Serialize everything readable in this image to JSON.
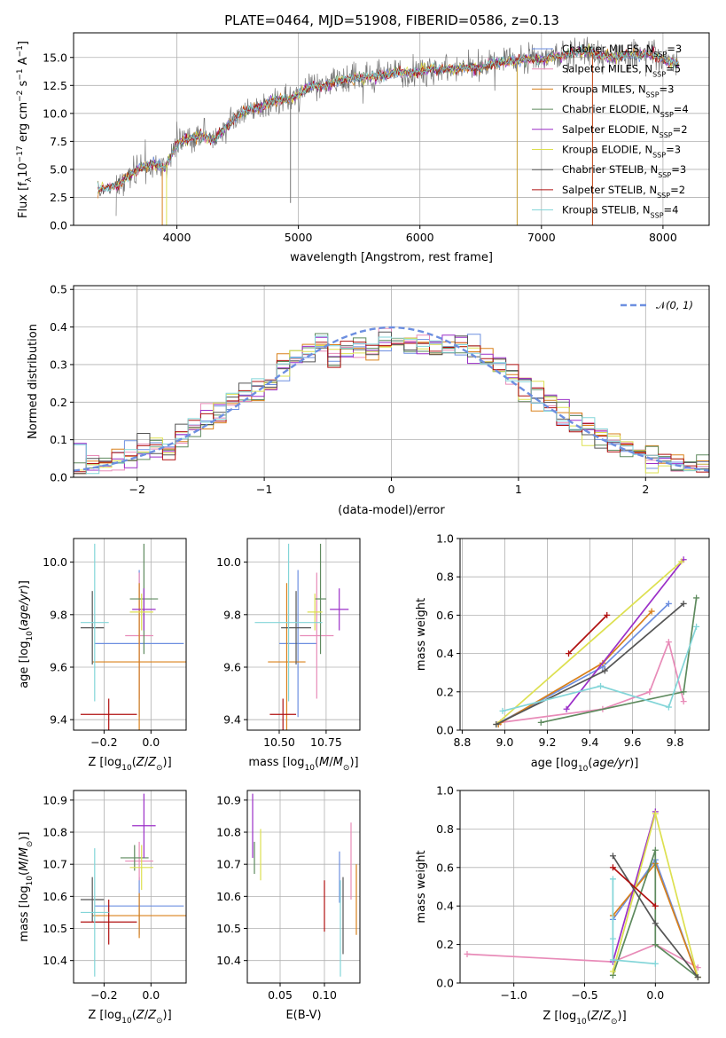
{
  "figure": {
    "title": "PLATE=0464, MJD=51908, FIBERID=0586, z=0.13"
  },
  "colors": {
    "Chabrier MILES": "#6d8fe0",
    "Salpeter MILES": "#e88bb8",
    "Kroupa MILES": "#d9801a",
    "Chabrier ELODIE": "#5e8a5e",
    "Salpeter ELODIE": "#9b2fc8",
    "Kroupa ELODIE": "#dde050",
    "Chabrier STELIB": "#555555",
    "Salpeter STELIB": "#b01010",
    "Kroupa STELIB": "#82d5d8"
  },
  "chart_data": [
    {
      "id": "spectrum",
      "type": "line",
      "title": "PLATE=0464, MJD=51908, FIBERID=0586, z=0.13",
      "xlabel": "wavelength [Angstrom, rest frame]",
      "ylabel": "Flux [f$_\\lambda$10$^{-17}$ erg cm$^{-2}$ s$^{-1}$ A$^{-1}$]",
      "xlim": [
        3150,
        8380
      ],
      "ylim": [
        0,
        17.2
      ],
      "xticks": [
        "4000",
        "5000",
        "6000",
        "7000",
        "8000"
      ],
      "yticks": [
        "0.0",
        "2.5",
        "5.0",
        "7.5",
        "10.0",
        "12.5",
        "15.0"
      ],
      "legend_position": "top-right",
      "legend": [
        {
          "label": "Chabrier MILES, N",
          "sub": "SSP",
          "suffix": "=3"
        },
        {
          "label": "Salpeter MILES, N",
          "sub": "SSP",
          "suffix": "=5"
        },
        {
          "label": "Kroupa MILES, N",
          "sub": "SSP",
          "suffix": "=3"
        },
        {
          "label": "Chabrier ELODIE, N",
          "sub": "SSP",
          "suffix": "=4"
        },
        {
          "label": "Salpeter ELODIE, N",
          "sub": "SSP",
          "suffix": "=2"
        },
        {
          "label": "Kroupa ELODIE, N",
          "sub": "SSP",
          "suffix": "=3"
        },
        {
          "label": "Chabrier STELIB, N",
          "sub": "SSP",
          "suffix": "=3"
        },
        {
          "label": "Salpeter STELIB, N",
          "sub": "SSP",
          "suffix": "=2"
        },
        {
          "label": "Kroupa STELIB, N",
          "sub": "SSP",
          "suffix": "=4"
        }
      ],
      "continuum": [
        [
          3350,
          3.2
        ],
        [
          3500,
          3.5
        ],
        [
          3600,
          4.4
        ],
        [
          3700,
          5.1
        ],
        [
          3800,
          5.5
        ],
        [
          3900,
          5.1
        ],
        [
          4000,
          7.2
        ],
        [
          4100,
          7.8
        ],
        [
          4200,
          8.0
        ],
        [
          4300,
          7.6
        ],
        [
          4400,
          8.7
        ],
        [
          4500,
          9.8
        ],
        [
          4600,
          10.4
        ],
        [
          4700,
          10.6
        ],
        [
          4800,
          11.2
        ],
        [
          4900,
          11.2
        ],
        [
          5000,
          11.7
        ],
        [
          5100,
          12.5
        ],
        [
          5200,
          12.4
        ],
        [
          5300,
          12.8
        ],
        [
          5400,
          13.0
        ],
        [
          5500,
          13.2
        ],
        [
          5600,
          13.3
        ],
        [
          5700,
          13.4
        ],
        [
          5800,
          13.7
        ],
        [
          5900,
          13.6
        ],
        [
          6000,
          13.7
        ],
        [
          6100,
          14.1
        ],
        [
          6200,
          13.9
        ],
        [
          6300,
          14.0
        ],
        [
          6400,
          14.1
        ],
        [
          6500,
          14.0
        ],
        [
          6600,
          14.5
        ],
        [
          6700,
          14.6
        ],
        [
          6800,
          14.7
        ],
        [
          6900,
          14.9
        ],
        [
          7000,
          14.8
        ],
        [
          7100,
          15.1
        ],
        [
          7200,
          15.2
        ],
        [
          7300,
          15.6
        ],
        [
          7400,
          15.5
        ],
        [
          7500,
          15.2
        ],
        [
          7600,
          15.0
        ],
        [
          7700,
          15.2
        ],
        [
          7800,
          15.2
        ],
        [
          7900,
          15.4
        ],
        [
          8000,
          14.8
        ],
        [
          8100,
          14.4
        ]
      ],
      "spikes": [
        {
          "x": 3880,
          "y": 0
        },
        {
          "x": 3915,
          "y": 0
        },
        {
          "x": 4935,
          "y": 2.0
        },
        {
          "x": 6800,
          "y": 0
        },
        {
          "x": 7420,
          "y": 0
        }
      ]
    },
    {
      "id": "residuals",
      "type": "histogram",
      "xlabel": "(data-model)/error",
      "ylabel": "Normed distribution",
      "xlim": [
        -2.5,
        2.5
      ],
      "ylim": [
        0,
        0.51
      ],
      "xticks": [
        "−2",
        "−1",
        "0",
        "1",
        "2"
      ],
      "yticks": [
        "0.0",
        "0.1",
        "0.2",
        "0.3",
        "0.4",
        "0.5"
      ],
      "legend_position": "top-right",
      "legend": [
        {
          "label": "N(0,1)"
        }
      ],
      "bin_width": 0.1
    },
    {
      "id": "age_vs_Z",
      "type": "errorbar",
      "xlabel": "Z [log10(Z/Z⊙)]",
      "ylabel": "age [log10(age/yr)]",
      "xlim": [
        -0.33,
        0.15
      ],
      "ylim": [
        9.36,
        10.09
      ],
      "xticks": [
        "−0.2",
        "0.0"
      ],
      "yticks": [
        "9.4",
        "9.6",
        "9.8",
        "10.0"
      ],
      "points": [
        {
          "model": "Chabrier MILES",
          "x": -0.05,
          "xerr": 0.19,
          "y": 9.69,
          "yerr": 0.28
        },
        {
          "model": "Salpeter MILES",
          "x": -0.05,
          "xerr": 0.06,
          "y": 9.72,
          "yerr": 0.24
        },
        {
          "model": "Kroupa MILES",
          "x": -0.05,
          "xerr": 0.2,
          "y": 9.62,
          "yerr": 0.3
        },
        {
          "model": "Chabrier ELODIE",
          "x": -0.03,
          "xerr": 0.06,
          "y": 9.86,
          "yerr": 0.21
        },
        {
          "model": "Salpeter ELODIE",
          "x": -0.03,
          "xerr": 0.05,
          "y": 9.82,
          "yerr": 0.08
        },
        {
          "model": "Kroupa ELODIE",
          "x": -0.04,
          "xerr": 0.05,
          "y": 9.81,
          "yerr": 0.07
        },
        {
          "model": "Chabrier STELIB",
          "x": -0.25,
          "xerr": 0.05,
          "y": 9.75,
          "yerr": 0.14
        },
        {
          "model": "Salpeter STELIB",
          "x": -0.18,
          "xerr": 0.12,
          "y": 9.42,
          "yerr": 0.06
        },
        {
          "model": "Kroupa STELIB",
          "x": -0.24,
          "xerr": 0.06,
          "y": 9.77,
          "yerr": 0.3
        }
      ]
    },
    {
      "id": "age_vs_mass",
      "type": "errorbar",
      "xlabel": "mass [log10(M/M⊙)]",
      "ylabel": "",
      "xlim": [
        10.33,
        10.93
      ],
      "ylim": [
        9.36,
        10.09
      ],
      "xticks": [
        "10.50",
        "10.75"
      ],
      "yticks": [
        "9.4",
        "9.6",
        "9.8",
        "10.0"
      ],
      "points": [
        {
          "model": "Chabrier MILES",
          "x": 10.6,
          "xerr": 0.1,
          "y": 9.69,
          "yerr": 0.28
        },
        {
          "model": "Salpeter MILES",
          "x": 10.7,
          "xerr": 0.09,
          "y": 9.72,
          "yerr": 0.24
        },
        {
          "model": "Kroupa MILES",
          "x": 10.54,
          "xerr": 0.1,
          "y": 9.62,
          "yerr": 0.3
        },
        {
          "model": "Chabrier ELODIE",
          "x": 10.72,
          "xerr": 0.03,
          "y": 9.86,
          "yerr": 0.21
        },
        {
          "model": "Salpeter ELODIE",
          "x": 10.82,
          "xerr": 0.05,
          "y": 9.82,
          "yerr": 0.08
        },
        {
          "model": "Kroupa ELODIE",
          "x": 10.69,
          "xerr": 0.04,
          "y": 9.81,
          "yerr": 0.07
        },
        {
          "model": "Chabrier STELIB",
          "x": 10.59,
          "xerr": 0.08,
          "y": 9.75,
          "yerr": 0.14
        },
        {
          "model": "Salpeter STELIB",
          "x": 10.52,
          "xerr": 0.07,
          "y": 9.42,
          "yerr": 0.06
        },
        {
          "model": "Kroupa STELIB",
          "x": 10.55,
          "xerr": 0.18,
          "y": 9.77,
          "yerr": 0.3
        }
      ]
    },
    {
      "id": "mass_weight_vs_age",
      "type": "line",
      "xlabel": "age [log10(age/yr)]",
      "ylabel": "mass weight",
      "xlim": [
        8.79,
        9.96
      ],
      "ylim": [
        0,
        1
      ],
      "xticks": [
        "8.8",
        "9.0",
        "9.2",
        "9.4",
        "9.6",
        "9.8"
      ],
      "yticks": [
        "0.0",
        "0.2",
        "0.4",
        "0.6",
        "0.8",
        "1.0"
      ],
      "series": [
        {
          "model": "Chabrier MILES",
          "points": [
            [
              8.96,
              0.03
            ],
            [
              9.46,
              0.33
            ],
            [
              9.77,
              0.66
            ]
          ]
        },
        {
          "model": "Salpeter MILES",
          "points": [
            [
              8.98,
              0.04
            ],
            [
              9.46,
              0.11
            ],
            [
              9.68,
              0.2
            ],
            [
              9.77,
              0.46
            ],
            [
              9.84,
              0.15
            ]
          ]
        },
        {
          "model": "Kroupa MILES",
          "points": [
            [
              8.97,
              0.03
            ],
            [
              9.46,
              0.35
            ],
            [
              9.69,
              0.62
            ]
          ]
        },
        {
          "model": "Chabrier ELODIE",
          "points": [
            [
              9.17,
              0.04
            ],
            [
              9.84,
              0.2
            ],
            [
              9.9,
              0.69
            ]
          ]
        },
        {
          "model": "Salpeter ELODIE",
          "points": [
            [
              9.29,
              0.11
            ],
            [
              9.84,
              0.89
            ]
          ]
        },
        {
          "model": "Kroupa ELODIE",
          "points": [
            [
              8.96,
              0.03
            ],
            [
              9.83,
              0.88
            ]
          ]
        },
        {
          "model": "Chabrier STELIB",
          "points": [
            [
              8.96,
              0.03
            ],
            [
              9.47,
              0.31
            ],
            [
              9.84,
              0.66
            ]
          ]
        },
        {
          "model": "Salpeter STELIB",
          "points": [
            [
              9.3,
              0.4
            ],
            [
              9.48,
              0.6
            ]
          ]
        },
        {
          "model": "Kroupa STELIB",
          "points": [
            [
              8.99,
              0.1
            ],
            [
              9.45,
              0.23
            ],
            [
              9.77,
              0.12
            ],
            [
              9.9,
              0.54
            ]
          ]
        }
      ]
    },
    {
      "id": "mass_vs_Z",
      "type": "errorbar",
      "xlabel": "Z [log10(Z/Z⊙)]",
      "ylabel": "mass [log10(M/M⊙)]",
      "xlim": [
        -0.33,
        0.15
      ],
      "ylim": [
        10.33,
        10.93
      ],
      "xticks": [
        "−0.2",
        "0.0"
      ],
      "yticks": [
        "10.4",
        "10.5",
        "10.6",
        "10.7",
        "10.8",
        "10.9"
      ],
      "points": [
        {
          "model": "Chabrier MILES",
          "x": -0.05,
          "xerr": 0.19,
          "y": 10.57,
          "yerr": 0.09
        },
        {
          "model": "Salpeter MILES",
          "x": -0.05,
          "xerr": 0.06,
          "y": 10.71,
          "yerr": 0.06
        },
        {
          "model": "Kroupa MILES",
          "x": -0.05,
          "xerr": 0.2,
          "y": 10.54,
          "yerr": 0.07
        },
        {
          "model": "Chabrier ELODIE",
          "x": -0.07,
          "xerr": 0.06,
          "y": 10.72,
          "yerr": 0.04
        },
        {
          "model": "Salpeter ELODIE",
          "x": -0.03,
          "xerr": 0.05,
          "y": 10.82,
          "yerr": 0.1
        },
        {
          "model": "Kroupa ELODIE",
          "x": -0.04,
          "xerr": 0.05,
          "y": 10.69,
          "yerr": 0.07
        },
        {
          "model": "Chabrier STELIB",
          "x": -0.25,
          "xerr": 0.05,
          "y": 10.59,
          "yerr": 0.07
        },
        {
          "model": "Salpeter STELIB",
          "x": -0.18,
          "xerr": 0.12,
          "y": 10.52,
          "yerr": 0.07
        },
        {
          "model": "Kroupa STELIB",
          "x": -0.24,
          "xerr": 0.06,
          "y": 10.55,
          "yerr": 0.2
        }
      ]
    },
    {
      "id": "mass_vs_ebv",
      "type": "errorbar",
      "xlabel": "E(B-V)",
      "ylabel": "",
      "xlim": [
        0.013,
        0.14
      ],
      "ylim": [
        10.33,
        10.93
      ],
      "xticks": [
        "0.05",
        "0.10"
      ],
      "yticks": [
        "10.4",
        "10.5",
        "10.6",
        "10.7",
        "10.8",
        "10.9"
      ],
      "points": [
        {
          "model": "Chabrier MILES",
          "x": 0.117,
          "y": 10.66,
          "yerr": 0.08
        },
        {
          "model": "Salpeter MILES",
          "x": 0.13,
          "y": 10.71,
          "yerr": 0.12
        },
        {
          "model": "Kroupa MILES",
          "x": 0.136,
          "y": 10.59,
          "yerr": 0.11
        },
        {
          "model": "Chabrier ELODIE",
          "x": 0.021,
          "y": 10.72,
          "yerr": 0.05
        },
        {
          "model": "Salpeter ELODIE",
          "x": 0.019,
          "y": 10.82,
          "yerr": 0.1
        },
        {
          "model": "Kroupa ELODIE",
          "x": 0.028,
          "y": 10.73,
          "yerr": 0.08
        },
        {
          "model": "Chabrier STELIB",
          "x": 0.121,
          "y": 10.54,
          "yerr": 0.12
        },
        {
          "model": "Salpeter STELIB",
          "x": 0.1,
          "y": 10.57,
          "yerr": 0.08
        },
        {
          "model": "Kroupa STELIB",
          "x": 0.118,
          "y": 10.5,
          "yerr": 0.15
        }
      ]
    },
    {
      "id": "mass_weight_vs_Z",
      "type": "line",
      "xlabel": "Z [log10(Z/Z⊙)]",
      "ylabel": "mass weight",
      "xlim": [
        -1.38,
        0.38
      ],
      "ylim": [
        0,
        1
      ],
      "xticks": [
        "−1.0",
        "−0.5",
        "0.0"
      ],
      "yticks": [
        "0.0",
        "0.2",
        "0.4",
        "0.6",
        "0.8",
        "1.0"
      ],
      "series": [
        {
          "model": "Chabrier MILES",
          "points": [
            [
              -0.3,
              0.33
            ],
            [
              0.0,
              0.64
            ],
            [
              0.3,
              0.03
            ]
          ]
        },
        {
          "model": "Salpeter MILES",
          "points": [
            [
              -1.33,
              0.15
            ],
            [
              -0.3,
              0.11
            ],
            [
              0.0,
              0.2
            ],
            [
              0.3,
              0.08
            ]
          ]
        },
        {
          "model": "Kroupa MILES",
          "points": [
            [
              -0.3,
              0.35
            ],
            [
              0.0,
              0.62
            ],
            [
              0.3,
              0.03
            ]
          ]
        },
        {
          "model": "Chabrier ELODIE",
          "points": [
            [
              -0.3,
              0.04
            ],
            [
              0.0,
              0.69
            ],
            [
              0.0,
              0.2
            ],
            [
              0.3,
              0.03
            ]
          ]
        },
        {
          "model": "Salpeter ELODIE",
          "points": [
            [
              -0.3,
              0.11
            ],
            [
              0.0,
              0.89
            ]
          ]
        },
        {
          "model": "Kroupa ELODIE",
          "points": [
            [
              -0.3,
              0.06
            ],
            [
              0.0,
              0.88
            ],
            [
              0.3,
              0.03
            ]
          ]
        },
        {
          "model": "Chabrier STELIB",
          "points": [
            [
              -0.3,
              0.66
            ],
            [
              0.0,
              0.31
            ],
            [
              0.3,
              0.03
            ]
          ]
        },
        {
          "model": "Salpeter STELIB",
          "points": [
            [
              -0.3,
              0.6
            ],
            [
              0.0,
              0.4
            ]
          ]
        },
        {
          "model": "Kroupa STELIB",
          "points": [
            [
              -0.3,
              0.54
            ],
            [
              -0.3,
              0.23
            ],
            [
              -0.3,
              0.12
            ],
            [
              0.0,
              0.1
            ]
          ]
        }
      ]
    }
  ]
}
